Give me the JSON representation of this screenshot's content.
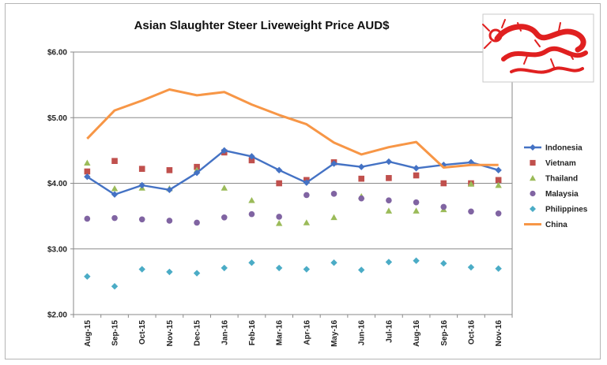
{
  "chart_data": {
    "type": "line",
    "title": "Asian Slaughter Steer Liveweight Price AUD$",
    "xlabel": "",
    "ylabel": "",
    "ylim": [
      2.0,
      6.0
    ],
    "yticks": [
      "$2.00",
      "$3.00",
      "$4.00",
      "$5.00",
      "$6.00"
    ],
    "categories": [
      "Aug-15",
      "Sep-15",
      "Oct-15",
      "Nov-15",
      "Dec-15",
      "Jan-16",
      "Feb-16",
      "Mar-16",
      "Apr-16",
      "May-16",
      "Jun-16",
      "Jul-16",
      "Aug-16",
      "Sep-16",
      "Oct-16",
      "Nov-16"
    ],
    "grid": true,
    "legend_position": "right",
    "series": [
      {
        "name": "Indonesia",
        "style": "line",
        "marker": "diamond",
        "color": "#4472c4",
        "values": [
          4.1,
          3.83,
          3.97,
          3.9,
          4.16,
          4.5,
          4.41,
          4.2,
          4.01,
          4.3,
          4.25,
          4.33,
          4.23,
          4.28,
          4.32,
          4.2
        ]
      },
      {
        "name": "Vietnam",
        "style": "markers",
        "marker": "square",
        "color": "#c0504d",
        "values": [
          4.18,
          4.34,
          4.22,
          4.2,
          4.25,
          4.47,
          4.35,
          4.0,
          4.05,
          4.32,
          4.07,
          4.08,
          4.12,
          4.0,
          4.0,
          4.05
        ]
      },
      {
        "name": "Thailand",
        "style": "markers",
        "marker": "triangle",
        "color": "#9bbb59",
        "values": [
          4.31,
          3.92,
          3.93,
          3.92,
          4.2,
          3.93,
          3.74,
          3.39,
          3.4,
          3.48,
          3.8,
          3.58,
          3.58,
          3.6,
          3.99,
          3.97
        ]
      },
      {
        "name": "Malaysia",
        "style": "markers",
        "marker": "circle",
        "color": "#8064a2",
        "values": [
          3.46,
          3.47,
          3.45,
          3.43,
          3.4,
          3.48,
          3.53,
          3.49,
          3.82,
          3.84,
          3.77,
          3.74,
          3.71,
          3.64,
          3.57,
          3.54
        ]
      },
      {
        "name": "Philippines",
        "style": "markers",
        "marker": "diamond",
        "color": "#4bacc6",
        "values": [
          2.58,
          2.43,
          2.69,
          2.65,
          2.63,
          2.71,
          2.79,
          2.71,
          2.69,
          2.79,
          2.68,
          2.8,
          2.82,
          2.78,
          2.72,
          2.7
        ]
      },
      {
        "name": "China",
        "style": "line",
        "marker": "none",
        "color": "#f79646",
        "values": [
          4.68,
          5.11,
          5.26,
          5.43,
          5.34,
          5.39,
          5.2,
          5.04,
          4.9,
          4.62,
          4.44,
          4.55,
          4.63,
          4.24,
          4.28,
          4.28
        ]
      }
    ]
  },
  "logo": {
    "icon": "red-dragon-icon",
    "color": "#e02020"
  }
}
